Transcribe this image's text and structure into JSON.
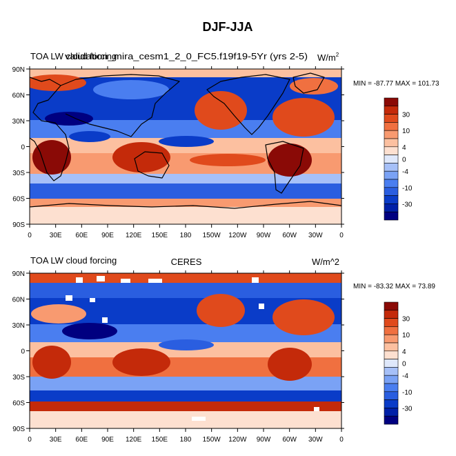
{
  "figure": {
    "title": "DJF-JJA"
  },
  "chart_data": [
    {
      "type": "heatmap",
      "left_title": "TOA LW cloud forcing",
      "center_title": "validation_mira_cesm1_2_0_FC5.f19f19-5Yr (yrs 2-5)",
      "units": "W/m",
      "units_sup": "2",
      "stats": "MIN = -87.77 MAX = 101.73",
      "min": -87.77,
      "max": 101.73,
      "x_ticks": [
        "0",
        "30E",
        "60E",
        "90E",
        "120E",
        "150E",
        "180",
        "150W",
        "120W",
        "90W",
        "60W",
        "30W",
        "0"
      ],
      "y_ticks": [
        "90N",
        "60N",
        "30N",
        "0",
        "30S",
        "60S",
        "90S"
      ],
      "xlim": [
        0,
        360
      ],
      "ylim": [
        -90,
        90
      ],
      "colorbar_labels": [
        "30",
        "10",
        "4",
        "0",
        "-4",
        "-10",
        "-30"
      ],
      "colorbar_levels": [
        -40,
        -30,
        -20,
        -10,
        -6,
        -4,
        -2,
        0,
        2,
        4,
        6,
        10,
        20,
        30,
        40
      ]
    },
    {
      "type": "heatmap",
      "left_title": "TOA LW cloud forcing",
      "center_title": "CERES",
      "units": "W/m^2",
      "units_sup": "",
      "stats": "MIN = -83.32 MAX =  73.89",
      "min": -83.32,
      "max": 73.89,
      "x_ticks": [
        "0",
        "30E",
        "60E",
        "90E",
        "120E",
        "150E",
        "180",
        "150W",
        "120W",
        "90W",
        "60W",
        "30W",
        "0"
      ],
      "y_ticks": [
        "90N",
        "60N",
        "30N",
        "0",
        "30S",
        "60S",
        "90S"
      ],
      "xlim": [
        0,
        360
      ],
      "ylim": [
        -90,
        90
      ],
      "colorbar_labels": [
        "30",
        "10",
        "4",
        "0",
        "-4",
        "-10",
        "-30"
      ],
      "colorbar_levels": [
        -40,
        -30,
        -20,
        -10,
        -6,
        -4,
        -2,
        0,
        2,
        4,
        6,
        10,
        20,
        30,
        40
      ]
    }
  ],
  "colors": {
    "palette": [
      "#000080",
      "#0020a8",
      "#0a3cc8",
      "#2a5ee0",
      "#4a7ef0",
      "#7aa2f5",
      "#a6c0f8",
      "#dfe8fb",
      "#fde0d0",
      "#fcc0a0",
      "#f89a70",
      "#f07040",
      "#e04a1c",
      "#c42a0a",
      "#8a0a06"
    ],
    "coast": "#000000",
    "missing": "#ffffff"
  }
}
